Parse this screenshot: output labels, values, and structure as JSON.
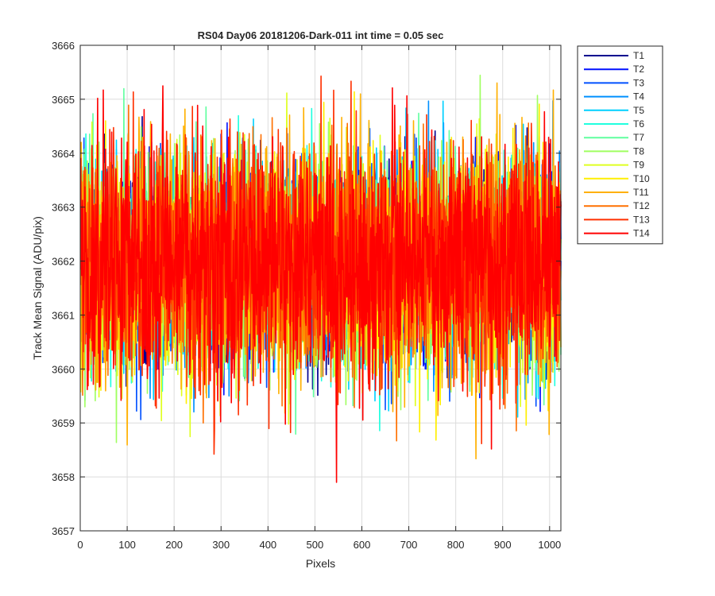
{
  "chart_data": {
    "type": "line",
    "title": "RS04 Day06 20181206-Dark-011 int time = 0.05 sec",
    "xlabel": "Pixels",
    "ylabel": "Track Mean Signal (ADU/pix)",
    "xlim": [
      0,
      1024
    ],
    "ylim": [
      3657,
      3666
    ],
    "xticks": [
      0,
      100,
      200,
      300,
      400,
      500,
      600,
      700,
      800,
      900,
      1000
    ],
    "yticks": [
      3657,
      3658,
      3659,
      3660,
      3661,
      3662,
      3663,
      3664,
      3665,
      3666
    ],
    "grid": true,
    "legend_position": "outside-top-right",
    "num_points": 1024,
    "noise": {
      "mean": 3662,
      "std": 1.0,
      "min": 3657.9,
      "max": 3665.7
    },
    "series": [
      {
        "name": "T1",
        "color": "#00008f"
      },
      {
        "name": "T2",
        "color": "#0010ff"
      },
      {
        "name": "T3",
        "color": "#0050ff"
      },
      {
        "name": "T4",
        "color": "#0090ff"
      },
      {
        "name": "T5",
        "color": "#00d0ff"
      },
      {
        "name": "T6",
        "color": "#20ffdf"
      },
      {
        "name": "T7",
        "color": "#60ff9f"
      },
      {
        "name": "T8",
        "color": "#9fff60"
      },
      {
        "name": "T9",
        "color": "#dfff20"
      },
      {
        "name": "T10",
        "color": "#ffef00"
      },
      {
        "name": "T11",
        "color": "#ffb000"
      },
      {
        "name": "T12",
        "color": "#ff7000"
      },
      {
        "name": "T13",
        "color": "#ff3000"
      },
      {
        "name": "T14",
        "color": "#ff0000"
      }
    ]
  }
}
